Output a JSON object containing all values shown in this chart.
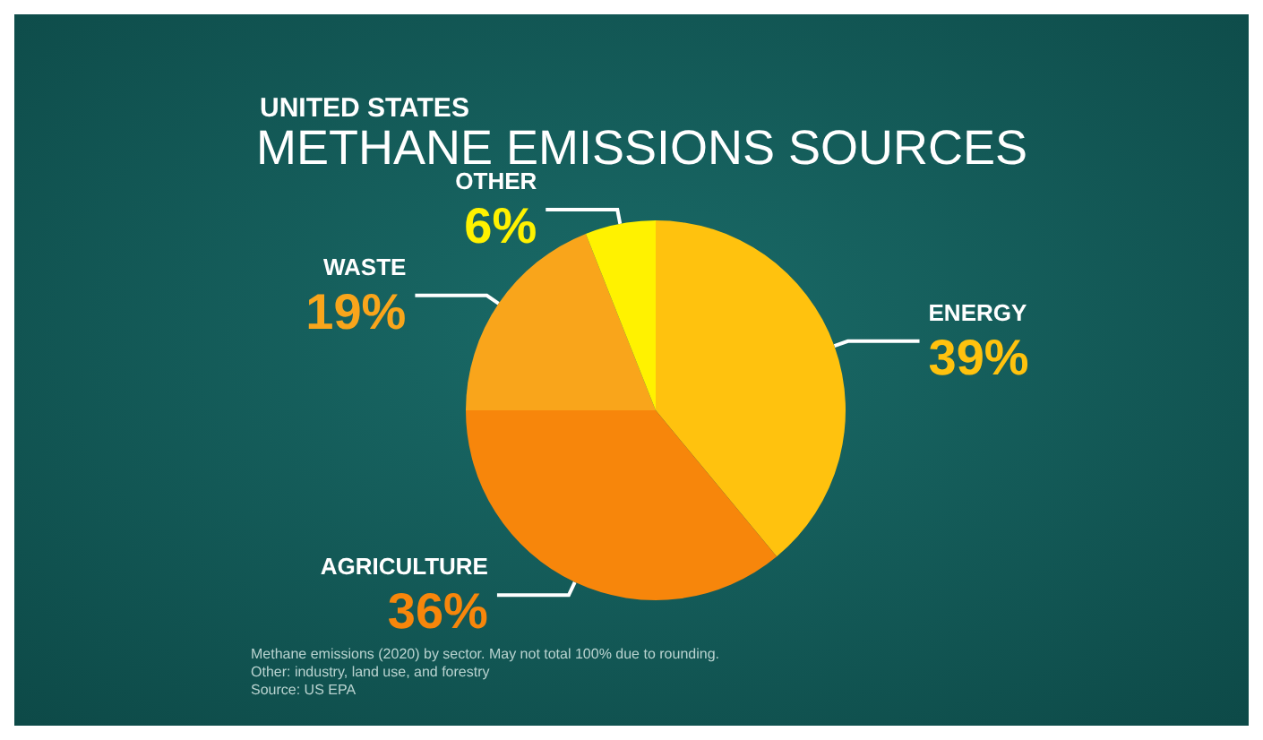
{
  "chart_data": {
    "type": "pie",
    "title": "METHANE EMISSIONS SOURCES",
    "subtitle": "UNITED STATES",
    "categories": [
      "ENERGY",
      "AGRICULTURE",
      "WASTE",
      "OTHER"
    ],
    "values": [
      39,
      36,
      19,
      6
    ],
    "value_labels": [
      "39%",
      "36%",
      "19%",
      "6%"
    ],
    "colors": [
      "#ffc20e",
      "#f7860b",
      "#f9a51b",
      "#fff200"
    ],
    "legend": false,
    "annotations": [
      "Methane emissions (2020) by sector. May not total 100% due to rounding.",
      "Other: industry, land use, and forestry",
      "Source: US EPA"
    ]
  }
}
